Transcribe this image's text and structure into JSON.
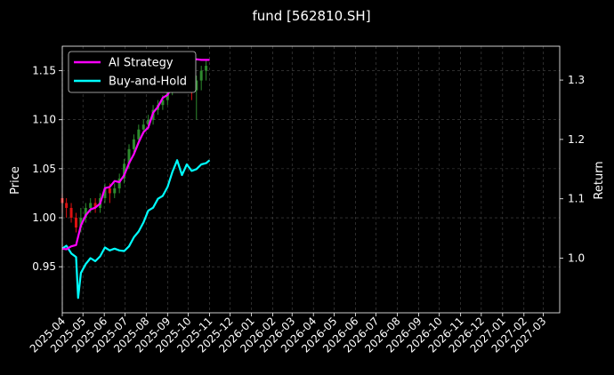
{
  "chart_data": {
    "type": "line",
    "title": "fund [562810.SH]",
    "ylabel": "Price",
    "y2label": "Return",
    "ylim": [
      0.903,
      1.175
    ],
    "y2lim": [
      0.908,
      1.357
    ],
    "y_ticks": [
      "0.95",
      "1.00",
      "1.05",
      "1.10",
      "1.15"
    ],
    "y2_ticks": [
      "1.0",
      "1.1",
      "1.2",
      "1.3"
    ],
    "x_ticks": [
      "2025-04",
      "2025-05",
      "2025-06",
      "2025-07",
      "2025-08",
      "2025-09",
      "2025-10",
      "2025-11",
      "2025-12",
      "2026-01",
      "2026-02",
      "2026-03",
      "2026-04",
      "2026-05",
      "2026-06",
      "2026-07",
      "2026-08",
      "2026-09",
      "2026-10",
      "2026-11",
      "2026-12",
      "2027-01",
      "2027-02",
      "2027-03"
    ],
    "xlim": [
      "2025-04-01",
      "2027-03-25"
    ],
    "grid": true,
    "legend_position": "upper-left",
    "colors": {
      "background": "#000000",
      "ai_strategy": "#ff00ff",
      "buy_and_hold": "#00ffff",
      "candle_up": "#2e8b2e",
      "candle_down": "#dd1111",
      "grid": "#4a4a4a"
    },
    "series": [
      {
        "name": "AI Strategy",
        "axis": "right",
        "x": [
          "2025-04-01",
          "2025-04-07",
          "2025-04-14",
          "2025-04-21",
          "2025-04-28",
          "2025-05-05",
          "2025-05-12",
          "2025-05-19",
          "2025-05-26",
          "2025-06-02",
          "2025-06-09",
          "2025-06-16",
          "2025-06-23",
          "2025-06-30",
          "2025-07-07",
          "2025-07-14",
          "2025-07-21",
          "2025-07-28",
          "2025-08-04",
          "2025-08-11",
          "2025-08-18",
          "2025-08-25",
          "2025-09-01",
          "2025-09-08",
          "2025-09-15",
          "2025-09-22",
          "2025-09-29",
          "2025-10-06",
          "2025-10-13",
          "2025-10-20",
          "2025-10-27",
          "2025-11-01"
        ],
        "values": [
          1.016,
          1.015,
          1.02,
          1.022,
          1.055,
          1.072,
          1.082,
          1.085,
          1.092,
          1.118,
          1.12,
          1.13,
          1.128,
          1.14,
          1.16,
          1.175,
          1.195,
          1.212,
          1.22,
          1.245,
          1.255,
          1.27,
          1.275,
          1.29,
          1.305,
          1.325,
          1.342,
          1.334,
          1.335,
          1.334,
          1.334,
          1.334
        ]
      },
      {
        "name": "Buy-and-Hold",
        "axis": "right",
        "x": [
          "2025-04-01",
          "2025-04-07",
          "2025-04-14",
          "2025-04-21",
          "2025-04-24",
          "2025-04-28",
          "2025-05-05",
          "2025-05-12",
          "2025-05-19",
          "2025-05-26",
          "2025-06-02",
          "2025-06-09",
          "2025-06-16",
          "2025-06-23",
          "2025-06-30",
          "2025-07-07",
          "2025-07-14",
          "2025-07-21",
          "2025-07-28",
          "2025-08-04",
          "2025-08-11",
          "2025-08-18",
          "2025-08-25",
          "2025-09-01",
          "2025-09-08",
          "2025-09-15",
          "2025-09-22",
          "2025-09-29",
          "2025-10-06",
          "2025-10-13",
          "2025-10-20",
          "2025-10-27",
          "2025-11-01"
        ],
        "values": [
          1.016,
          1.021,
          1.008,
          1.002,
          0.933,
          0.975,
          0.99,
          1.0,
          0.995,
          1.003,
          1.018,
          1.013,
          1.016,
          1.013,
          1.012,
          1.02,
          1.035,
          1.045,
          1.06,
          1.08,
          1.085,
          1.1,
          1.105,
          1.12,
          1.145,
          1.165,
          1.14,
          1.158,
          1.147,
          1.15,
          1.158,
          1.16,
          1.165
        ]
      },
      {
        "name": "",
        "type": "candlestick",
        "axis": "left",
        "x": [
          "2025-04-01",
          "2025-04-07",
          "2025-04-14",
          "2025-04-21",
          "2025-04-28",
          "2025-05-05",
          "2025-05-12",
          "2025-05-19",
          "2025-05-26",
          "2025-06-02",
          "2025-06-09",
          "2025-06-16",
          "2025-06-23",
          "2025-06-30",
          "2025-07-07",
          "2025-07-14",
          "2025-07-21",
          "2025-07-28",
          "2025-08-04",
          "2025-08-11",
          "2025-08-18",
          "2025-08-25",
          "2025-09-01",
          "2025-09-08",
          "2025-09-15",
          "2025-09-22",
          "2025-09-29",
          "2025-10-06",
          "2025-10-13",
          "2025-10-20",
          "2025-10-27"
        ],
        "open": [
          1.02,
          1.015,
          1.01,
          1.0,
          0.99,
          1.0,
          1.01,
          1.015,
          1.01,
          1.02,
          1.03,
          1.025,
          1.03,
          1.04,
          1.055,
          1.07,
          1.08,
          1.09,
          1.095,
          1.1,
          1.11,
          1.115,
          1.12,
          1.13,
          1.14,
          1.145,
          1.15,
          1.145,
          1.13,
          1.14,
          1.15
        ],
        "close": [
          1.015,
          1.01,
          1.0,
          0.99,
          1.0,
          1.01,
          1.015,
          1.01,
          1.02,
          1.03,
          1.025,
          1.03,
          1.04,
          1.055,
          1.07,
          1.08,
          1.09,
          1.095,
          1.1,
          1.11,
          1.115,
          1.12,
          1.13,
          1.14,
          1.145,
          1.15,
          1.145,
          1.13,
          1.14,
          1.15,
          1.155
        ],
        "high": [
          1.025,
          1.02,
          1.015,
          1.005,
          1.01,
          1.015,
          1.02,
          1.02,
          1.025,
          1.035,
          1.035,
          1.035,
          1.045,
          1.06,
          1.075,
          1.085,
          1.095,
          1.1,
          1.105,
          1.115,
          1.12,
          1.125,
          1.135,
          1.145,
          1.15,
          1.155,
          1.16,
          1.15,
          1.145,
          1.155,
          1.16
        ],
        "low": [
          1.005,
          1.0,
          0.995,
          0.985,
          0.985,
          0.995,
          1.005,
          1.005,
          1.005,
          1.015,
          1.015,
          1.02,
          1.025,
          1.035,
          1.05,
          1.065,
          1.075,
          1.085,
          1.09,
          1.095,
          1.105,
          1.11,
          1.115,
          1.125,
          1.135,
          1.14,
          1.14,
          1.12,
          1.1,
          1.13,
          1.14
        ]
      }
    ]
  }
}
